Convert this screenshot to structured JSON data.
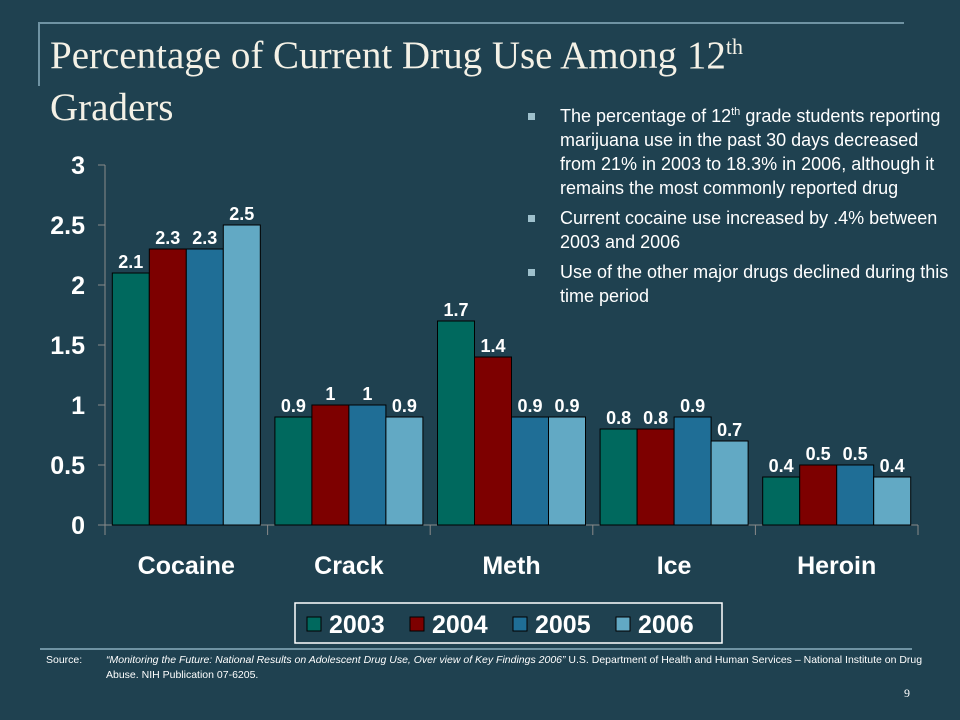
{
  "slide": {
    "title_main": "Percentage of Current Drug Use Among 12",
    "title_sup": "th",
    "title_tail": "Graders",
    "page_number": "9"
  },
  "bullets": [
    {
      "before": "The percentage of 12",
      "sup": "th",
      "after": " grade students reporting marijuana use in the past 30 days decreased from 21% in 2003 to 18.3% in 2006, although it remains the most commonly reported drug"
    },
    {
      "text": "Current cocaine use increased by .4% between 2003 and 2006"
    },
    {
      "text": "Use of the other major drugs declined during this time period"
    }
  ],
  "source": {
    "label": "Source:",
    "citation": "“Monitoring the Future: National Results on Adolescent Drug Use, Over view of Key Findings 2006”",
    "rest": " U.S. Department of Health and Human Services – National Institute on Drug Abuse. NIH Publication 07-6205."
  },
  "chart_data": {
    "type": "bar",
    "categories": [
      "Cocaine",
      "Crack",
      "Meth",
      "Ice",
      "Heroin"
    ],
    "series": [
      {
        "name": "2003",
        "values": [
          2.1,
          0.9,
          1.7,
          0.8,
          0.4
        ],
        "color": "#00695e"
      },
      {
        "name": "2004",
        "values": [
          2.3,
          1,
          1.4,
          0.8,
          0.5
        ],
        "color": "#7d0000"
      },
      {
        "name": "2005",
        "values": [
          2.3,
          1,
          0.9,
          0.9,
          0.5
        ],
        "color": "#1f6e96"
      },
      {
        "name": "2006",
        "values": [
          2.5,
          0.9,
          0.9,
          0.7,
          0.4
        ],
        "color": "#62a9c4"
      }
    ],
    "y_ticks": [
      "0",
      "0.5",
      "1",
      "1.5",
      "2",
      "2.5",
      "3"
    ],
    "ylim": [
      0,
      3
    ],
    "grid": false,
    "legend_position": "bottom",
    "data_labels": true
  }
}
